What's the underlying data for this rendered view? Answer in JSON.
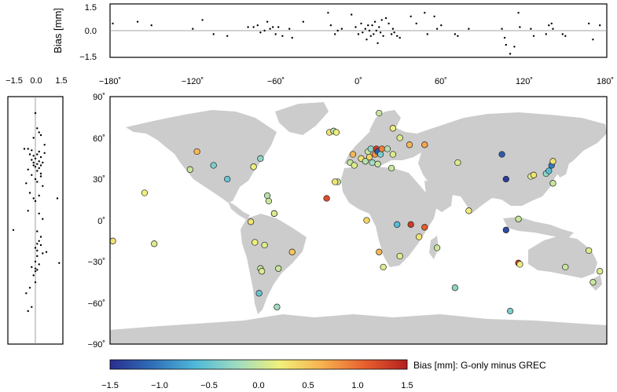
{
  "figure": {
    "colorbar_label": "Bias [mm]: G-only minus GREC",
    "top_ylabel": "Bias [mm]",
    "colormap": [
      "#2a2d8f",
      "#2f6fb8",
      "#4fb8d8",
      "#9fdcc0",
      "#f1f07a",
      "#f6b14f",
      "#e8602f",
      "#b51f1f"
    ],
    "land_color": "#cccccc"
  },
  "map_axes": {
    "lon_ticks": [
      "−180˚",
      "−120˚",
      "−60˚",
      "0˚",
      "60˚",
      "120˚",
      "180˚"
    ],
    "lat_ticks": [
      "90˚",
      "60˚",
      "30˚",
      "0˚",
      "−30˚",
      "−60˚",
      "−90˚"
    ]
  },
  "top_axes": {
    "yticks": [
      "1.5",
      "0.0",
      "−1.5"
    ]
  },
  "left_axes": {
    "xticks": [
      "−1.5",
      "0.0",
      "1.5"
    ]
  },
  "colorbar_ticks": [
    "−1.5",
    "−1.0",
    "−0.5",
    "0.0",
    "0.5",
    "1.0",
    "1.5"
  ],
  "chart_data": {
    "type": "scatter",
    "xlabel": "",
    "ylabel": "",
    "xlim": [
      -180,
      180
    ],
    "ylim": [
      -90,
      90
    ],
    "bias_range": [
      -1.5,
      1.5
    ],
    "stations": [
      {
        "lon": -178,
        "lat": -15,
        "bias": 0.3
      },
      {
        "lon": -155,
        "lat": 20,
        "bias": 0.2
      },
      {
        "lon": -148,
        "lat": -17,
        "bias": 0.1
      },
      {
        "lon": -117,
        "lat": 50,
        "bias": 0.6
      },
      {
        "lon": -122,
        "lat": 37,
        "bias": 0.0
      },
      {
        "lon": -105,
        "lat": 40,
        "bias": -0.4
      },
      {
        "lon": -95,
        "lat": 30,
        "bias": -0.5
      },
      {
        "lon": -76,
        "lat": 39,
        "bias": 0.2
      },
      {
        "lon": -71,
        "lat": 45,
        "bias": -0.3
      },
      {
        "lon": -66,
        "lat": 18,
        "bias": -0.1
      },
      {
        "lon": -65,
        "lat": 14,
        "bias": 0.0
      },
      {
        "lon": -61,
        "lat": 5,
        "bias": -0.4
      },
      {
        "lon": -61,
        "lat": 5,
        "bias": 0.1
      },
      {
        "lon": -78,
        "lat": -1,
        "bias": 0.3
      },
      {
        "lon": -75,
        "lat": -16,
        "bias": 0.2
      },
      {
        "lon": -68,
        "lat": -18,
        "bias": 0.1
      },
      {
        "lon": -48,
        "lat": -23,
        "bias": 0.5
      },
      {
        "lon": -71,
        "lat": -35,
        "bias": 0.0
      },
      {
        "lon": -70,
        "lat": -37,
        "bias": 0.1
      },
      {
        "lon": -58,
        "lat": -35,
        "bias": 0.0
      },
      {
        "lon": -72,
        "lat": -53,
        "bias": -0.5
      },
      {
        "lon": -59,
        "lat": -63,
        "bias": -0.2
      },
      {
        "lon": -15,
        "lat": 28,
        "bias": 0.0
      },
      {
        "lon": -17,
        "lat": 28,
        "bias": 0.3
      },
      {
        "lon": -23,
        "lat": 16,
        "bias": 1.2
      },
      {
        "lon": -21,
        "lat": 64,
        "bias": 0.3
      },
      {
        "lon": -18,
        "lat": 65,
        "bias": -0.1
      },
      {
        "lon": -16,
        "lat": 64,
        "bias": 0.2
      },
      {
        "lon": 6,
        "lat": 0,
        "bias": 0.4
      },
      {
        "lon": 15,
        "lat": 78,
        "bias": 0.0
      },
      {
        "lon": 25,
        "lat": 67,
        "bias": 0.2
      },
      {
        "lon": 30,
        "lat": 60,
        "bias": 0.1
      },
      {
        "lon": 37,
        "lat": 55,
        "bias": 0.6
      },
      {
        "lon": -4,
        "lat": 48,
        "bias": 0.6
      },
      {
        "lon": -6,
        "lat": 42,
        "bias": 0.0
      },
      {
        "lon": -3,
        "lat": 40,
        "bias": 0.1
      },
      {
        "lon": 2,
        "lat": 45,
        "bias": 0.3
      },
      {
        "lon": 5,
        "lat": 43,
        "bias": -0.1
      },
      {
        "lon": 7,
        "lat": 50,
        "bias": 0.0
      },
      {
        "lon": 8,
        "lat": 46,
        "bias": 0.4
      },
      {
        "lon": 9,
        "lat": 52,
        "bias": -0.3
      },
      {
        "lon": 10,
        "lat": 42,
        "bias": -0.2
      },
      {
        "lon": 12,
        "lat": 48,
        "bias": 0.8
      },
      {
        "lon": 13,
        "lat": 52,
        "bias": 1.3
      },
      {
        "lon": 14,
        "lat": 50,
        "bias": -1.2
      },
      {
        "lon": 16,
        "lat": 48,
        "bias": -0.4
      },
      {
        "lon": 17,
        "lat": 52,
        "bias": 0.9
      },
      {
        "lon": 21,
        "lat": 52,
        "bias": -0.1
      },
      {
        "lon": 14,
        "lat": 41,
        "bias": 0.0
      },
      {
        "lon": 24,
        "lat": 38,
        "bias": 0.0
      },
      {
        "lon": 25,
        "lat": 48,
        "bias": 0.1
      },
      {
        "lon": 30,
        "lat": -26,
        "bias": 0.1
      },
      {
        "lon": 18,
        "lat": -34,
        "bias": 0.1
      },
      {
        "lon": 15,
        "lat": -23,
        "bias": 0.6
      },
      {
        "lon": 28,
        "lat": -3,
        "bias": -0.6
      },
      {
        "lon": 38,
        "lat": -3,
        "bias": 1.3
      },
      {
        "lon": 44,
        "lat": -12,
        "bias": 0.3
      },
      {
        "lon": 48,
        "lat": -5,
        "bias": 1.1
      },
      {
        "lon": 57,
        "lat": -20,
        "bias": 0.0
      },
      {
        "lon": 70,
        "lat": -49,
        "bias": -0.3
      },
      {
        "lon": 48,
        "lat": 55,
        "bias": 0.7
      },
      {
        "lon": 72,
        "lat": 42,
        "bias": 0.1
      },
      {
        "lon": 80,
        "lat": 7,
        "bias": 0.2
      },
      {
        "lon": 104,
        "lat": 48,
        "bias": -1.2
      },
      {
        "lon": 107,
        "lat": 30,
        "bias": -1.4
      },
      {
        "lon": 107,
        "lat": -7,
        "bias": -1.3
      },
      {
        "lon": 116,
        "lat": 1,
        "bias": 0.0
      },
      {
        "lon": 125,
        "lat": 32,
        "bias": 0.1
      },
      {
        "lon": 127,
        "lat": 33,
        "bias": 0.3
      },
      {
        "lon": 136,
        "lat": 34,
        "bias": -0.3
      },
      {
        "lon": 138,
        "lat": 36,
        "bias": -0.6
      },
      {
        "lon": 140,
        "lat": 40,
        "bias": -1.0
      },
      {
        "lon": 141,
        "lat": 43,
        "bias": 0.3
      },
      {
        "lon": 141,
        "lat": 27,
        "bias": 0.0
      },
      {
        "lon": 116,
        "lat": -31,
        "bias": 1.3
      },
      {
        "lon": 117,
        "lat": -32,
        "bias": 0.2
      },
      {
        "lon": 150,
        "lat": -34,
        "bias": 0.0
      },
      {
        "lon": 167,
        "lat": -22,
        "bias": 0.1
      },
      {
        "lon": 170,
        "lat": -45,
        "bias": 0.0
      },
      {
        "lon": 175,
        "lat": -37,
        "bias": 0.1
      },
      {
        "lon": 110,
        "lat": -66,
        "bias": -0.4
      }
    ],
    "top_panel": {
      "ylim": [
        -1.5,
        1.5
      ],
      "points": [
        [
          -178,
          0.4
        ],
        [
          -160,
          0.5
        ],
        [
          -150,
          0.3
        ],
        [
          -120,
          0.1
        ],
        [
          -113,
          0.6
        ],
        [
          -105,
          -0.2
        ],
        [
          -95,
          -0.3
        ],
        [
          -80,
          0.2
        ],
        [
          -76,
          0.2
        ],
        [
          -73,
          0.3
        ],
        [
          -71,
          -0.1
        ],
        [
          -68,
          0.0
        ],
        [
          -66,
          0.5
        ],
        [
          -64,
          0.1
        ],
        [
          -62,
          0.2
        ],
        [
          -60,
          -0.2
        ],
        [
          -58,
          0.2
        ],
        [
          -55,
          -0.3
        ],
        [
          -50,
          0.1
        ],
        [
          -48,
          -0.4
        ],
        [
          -40,
          0.5
        ],
        [
          -22,
          1.0
        ],
        [
          -20,
          0.3
        ],
        [
          -17,
          -0.2
        ],
        [
          -15,
          0.0
        ],
        [
          -12,
          0.1
        ],
        [
          -5,
          0.9
        ],
        [
          -2,
          0.2
        ],
        [
          0,
          -0.2
        ],
        [
          2,
          0.4
        ],
        [
          3,
          -0.1
        ],
        [
          5,
          0.1
        ],
        [
          6,
          -0.5
        ],
        [
          7,
          0.3
        ],
        [
          8,
          0.0
        ],
        [
          9,
          -0.3
        ],
        [
          10,
          0.3
        ],
        [
          11,
          -0.2
        ],
        [
          12,
          0.5
        ],
        [
          13,
          0.0
        ],
        [
          14,
          -0.7
        ],
        [
          15,
          0.2
        ],
        [
          16,
          -0.1
        ],
        [
          17,
          0.6
        ],
        [
          18,
          -0.3
        ],
        [
          20,
          0.7
        ],
        [
          22,
          0.4
        ],
        [
          24,
          -0.2
        ],
        [
          25,
          0.1
        ],
        [
          26,
          -0.1
        ],
        [
          28,
          -0.3
        ],
        [
          30,
          -0.4
        ],
        [
          38,
          0.8
        ],
        [
          42,
          0.4
        ],
        [
          48,
          1.0
        ],
        [
          50,
          -0.2
        ],
        [
          55,
          0.8
        ],
        [
          57,
          0.1
        ],
        [
          60,
          0.3
        ],
        [
          70,
          -0.2
        ],
        [
          72,
          -0.3
        ],
        [
          80,
          0.1
        ],
        [
          104,
          0.1
        ],
        [
          106,
          -0.4
        ],
        [
          107,
          -0.8
        ],
        [
          110,
          -1.3
        ],
        [
          113,
          -0.9
        ],
        [
          116,
          1.0
        ],
        [
          117,
          0.2
        ],
        [
          125,
          0.1
        ],
        [
          127,
          -0.3
        ],
        [
          136,
          -0.2
        ],
        [
          138,
          0.3
        ],
        [
          140,
          0.4
        ],
        [
          141,
          0.1
        ],
        [
          148,
          -0.2
        ],
        [
          150,
          -0.3
        ],
        [
          167,
          0.4
        ],
        [
          170,
          -0.5
        ],
        [
          175,
          0.3
        ]
      ]
    },
    "left_panel": {
      "xlim": [
        -1.5,
        1.5
      ],
      "points": [
        [
          0.0,
          78
        ],
        [
          0.1,
          67
        ],
        [
          0.2,
          64
        ],
        [
          0.3,
          62
        ],
        [
          -0.1,
          60
        ],
        [
          0.5,
          55
        ],
        [
          -0.6,
          52
        ],
        [
          -0.4,
          52
        ],
        [
          -0.2,
          51
        ],
        [
          0.2,
          50
        ],
        [
          0.5,
          49
        ],
        [
          -0.3,
          48
        ],
        [
          0.1,
          48
        ],
        [
          -0.1,
          47
        ],
        [
          0.3,
          46
        ],
        [
          0.0,
          45
        ],
        [
          -0.2,
          44
        ],
        [
          0.2,
          43
        ],
        [
          0.4,
          42
        ],
        [
          -0.1,
          42
        ],
        [
          0.1,
          41
        ],
        [
          0.3,
          40
        ],
        [
          -0.1,
          40
        ],
        [
          0.0,
          39
        ],
        [
          0.2,
          38
        ],
        [
          -0.4,
          37
        ],
        [
          0.1,
          36
        ],
        [
          0.3,
          34
        ],
        [
          -0.2,
          33
        ],
        [
          0.3,
          32
        ],
        [
          0.0,
          30
        ],
        [
          0.1,
          28
        ],
        [
          -0.5,
          27
        ],
        [
          0.4,
          25
        ],
        [
          -0.3,
          20
        ],
        [
          0.2,
          18
        ],
        [
          -0.1,
          16
        ],
        [
          1.2,
          16
        ],
        [
          0.0,
          14
        ],
        [
          -0.4,
          7
        ],
        [
          0.2,
          5
        ],
        [
          0.4,
          1
        ],
        [
          -1.2,
          -7
        ],
        [
          0.1,
          -8
        ],
        [
          0.3,
          -12
        ],
        [
          0.2,
          -15
        ],
        [
          0.1,
          -17
        ],
        [
          0.3,
          -18
        ],
        [
          0.0,
          -20
        ],
        [
          0.1,
          -22
        ],
        [
          0.6,
          -23
        ],
        [
          0.4,
          -24
        ],
        [
          0.1,
          -26
        ],
        [
          0.0,
          -30
        ],
        [
          1.3,
          -31
        ],
        [
          0.2,
          -32
        ],
        [
          -0.2,
          -34
        ],
        [
          0.0,
          -35
        ],
        [
          0.1,
          -36
        ],
        [
          0.0,
          -37
        ],
        [
          -0.1,
          -40
        ],
        [
          0.0,
          -45
        ],
        [
          -0.3,
          -49
        ],
        [
          -0.5,
          -53
        ],
        [
          -0.2,
          -63
        ],
        [
          -0.4,
          -66
        ]
      ]
    }
  }
}
